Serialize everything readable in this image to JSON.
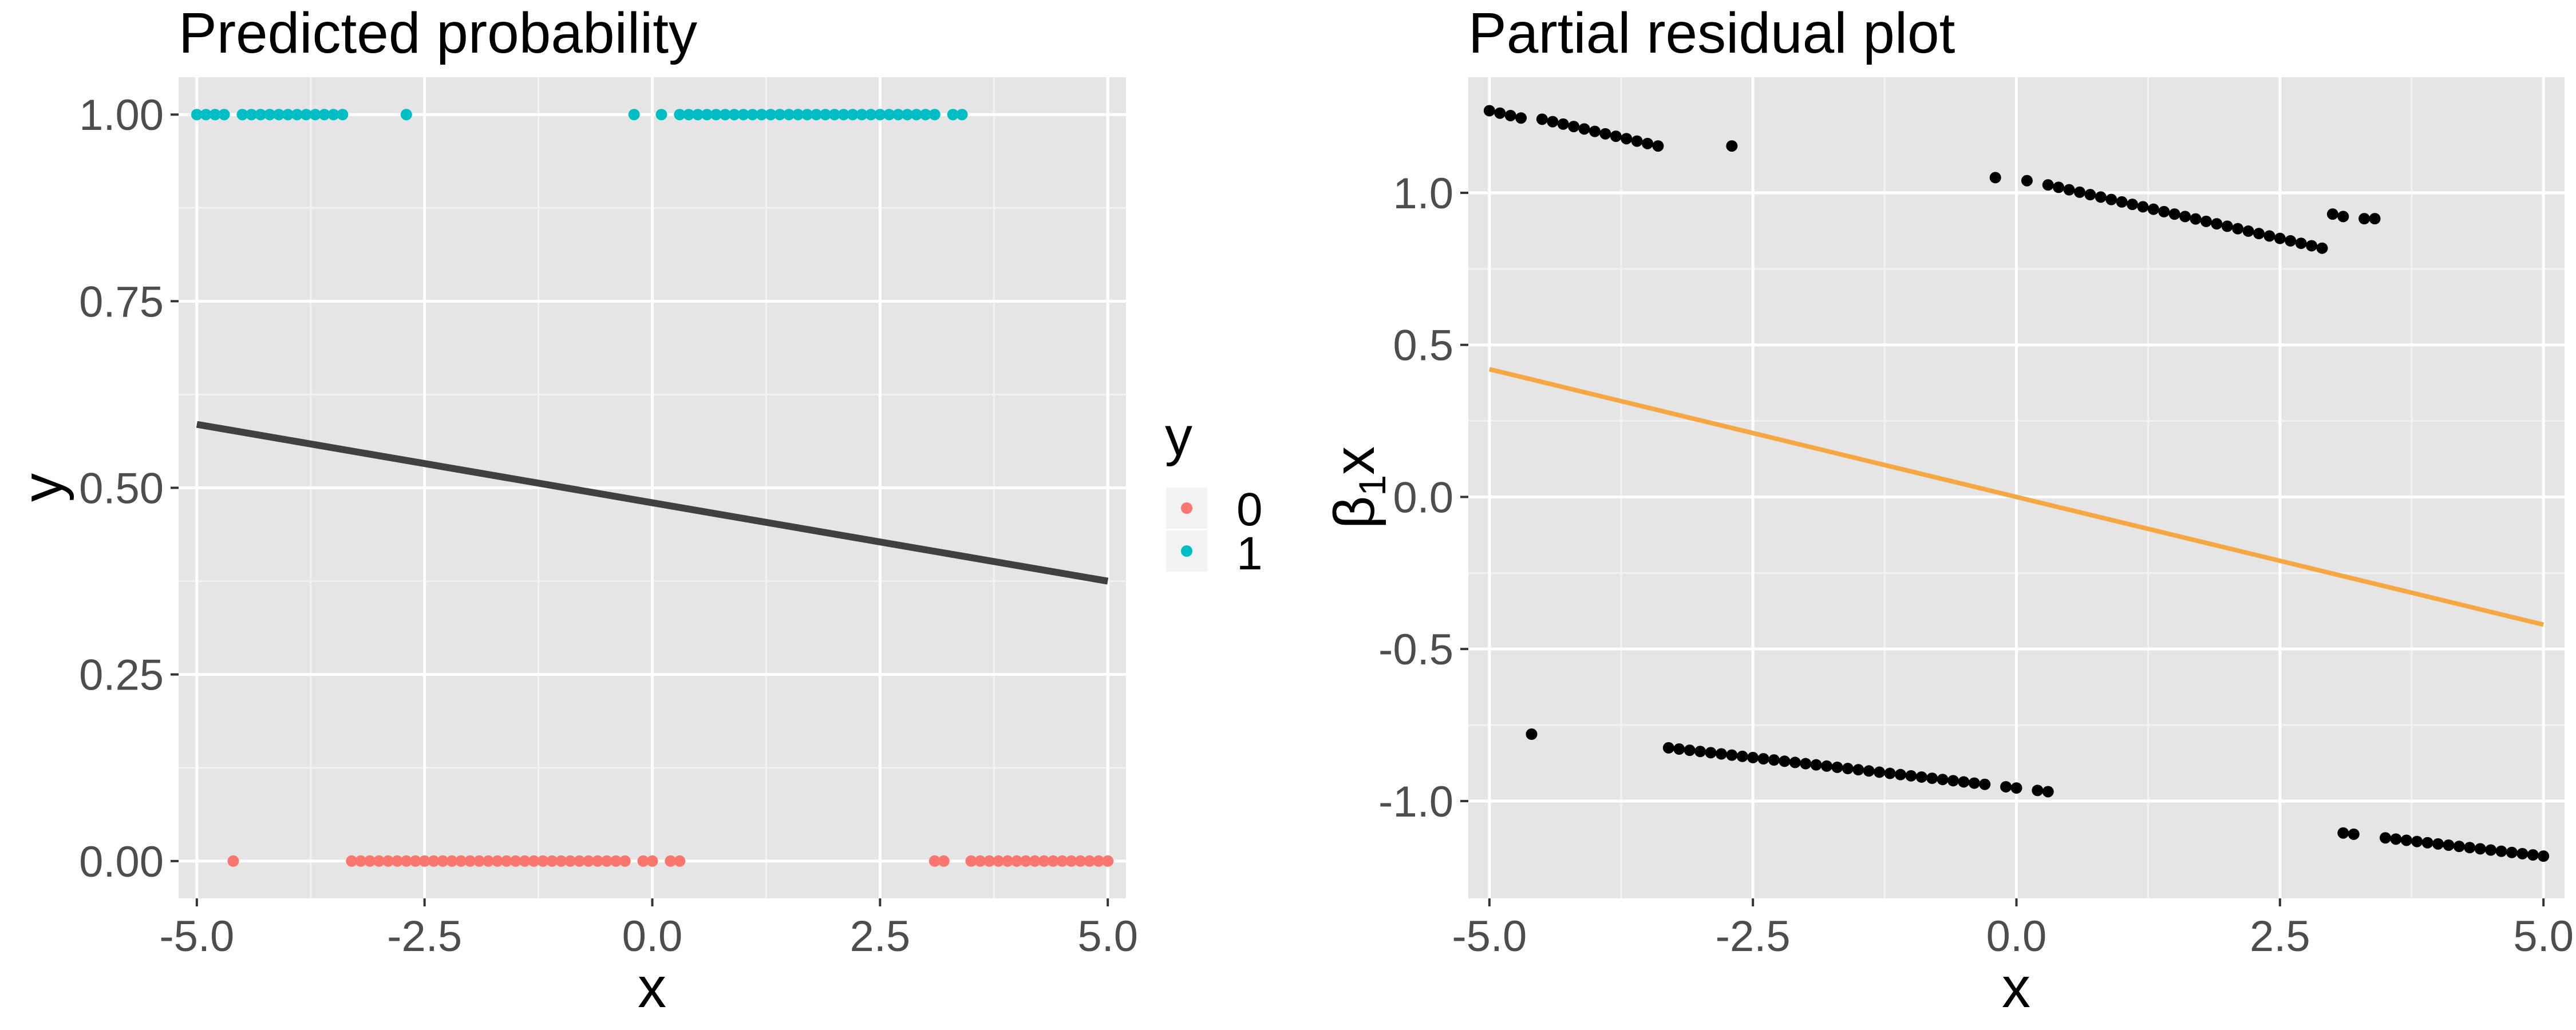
{
  "colors": {
    "panel_background": "#E5E5E5",
    "grid_major": "#FFFFFF",
    "grid_minor": "#F2F2F2",
    "class_0": "#F8766D",
    "class_1": "#00BFC4",
    "fit_line_left": "#404040",
    "fit_line_right": "#F5A742",
    "points_right": "#000000"
  },
  "chart_data": [
    {
      "type": "scatter",
      "title": "Predicted probability",
      "xlabel": "x",
      "ylabel": "y",
      "xlim": [
        -5.2,
        5.2
      ],
      "ylim": [
        -0.05,
        1.05
      ],
      "xticks": [
        -5.0,
        -2.5,
        0.0,
        2.5,
        5.0
      ],
      "xtick_labels": [
        "-5.0",
        "-2.5",
        "0.0",
        "2.5",
        "5.0"
      ],
      "yticks": [
        0.0,
        0.25,
        0.5,
        0.75,
        1.0
      ],
      "ytick_labels": [
        "0.00",
        "0.25",
        "0.50",
        "0.75",
        "1.00"
      ],
      "grid": true,
      "legend": {
        "title": "y",
        "position": "right",
        "entries": [
          {
            "label": "0",
            "color": "#F8766D"
          },
          {
            "label": "1",
            "color": "#00BFC4"
          }
        ]
      },
      "series": [
        {
          "name": "0",
          "color": "#F8766D",
          "x": [
            -4.6,
            -3.3,
            -3.2,
            -3.1,
            -3.0,
            -2.9,
            -2.8,
            -2.7,
            -2.6,
            -2.5,
            -2.4,
            -2.3,
            -2.2,
            -2.1,
            -2.0,
            -1.9,
            -1.8,
            -1.7,
            -1.6,
            -1.5,
            -1.4,
            -1.3,
            -1.2,
            -1.1,
            -1.0,
            -0.9,
            -0.8,
            -0.7,
            -0.6,
            -0.5,
            -0.4,
            -0.3,
            -0.1,
            0.0,
            0.2,
            0.3,
            3.1,
            3.2,
            3.5,
            3.6,
            3.7,
            3.8,
            3.9,
            4.0,
            4.1,
            4.2,
            4.3,
            4.4,
            4.5,
            4.6,
            4.7,
            4.8,
            4.9,
            5.0
          ],
          "y": [
            0,
            0,
            0,
            0,
            0,
            0,
            0,
            0,
            0,
            0,
            0,
            0,
            0,
            0,
            0,
            0,
            0,
            0,
            0,
            0,
            0,
            0,
            0,
            0,
            0,
            0,
            0,
            0,
            0,
            0,
            0,
            0,
            0,
            0,
            0,
            0,
            0,
            0,
            0,
            0,
            0,
            0,
            0,
            0,
            0,
            0,
            0,
            0,
            0,
            0,
            0,
            0,
            0,
            0
          ]
        },
        {
          "name": "1",
          "color": "#00BFC4",
          "x": [
            -5.0,
            -4.9,
            -4.8,
            -4.7,
            -4.5,
            -4.4,
            -4.3,
            -4.2,
            -4.1,
            -4.0,
            -3.9,
            -3.8,
            -3.7,
            -3.6,
            -3.5,
            -3.4,
            -2.7,
            -0.2,
            0.1,
            0.3,
            0.4,
            0.5,
            0.6,
            0.7,
            0.8,
            0.9,
            1.0,
            1.1,
            1.2,
            1.3,
            1.4,
            1.5,
            1.6,
            1.7,
            1.8,
            1.9,
            2.0,
            2.1,
            2.2,
            2.3,
            2.4,
            2.5,
            2.6,
            2.7,
            2.8,
            2.9,
            3.0,
            3.1,
            3.3,
            3.4
          ],
          "y": [
            1,
            1,
            1,
            1,
            1,
            1,
            1,
            1,
            1,
            1,
            1,
            1,
            1,
            1,
            1,
            1,
            1,
            1,
            1,
            1,
            1,
            1,
            1,
            1,
            1,
            1,
            1,
            1,
            1,
            1,
            1,
            1,
            1,
            1,
            1,
            1,
            1,
            1,
            1,
            1,
            1,
            1,
            1,
            1,
            1,
            1,
            1,
            1,
            1,
            1
          ]
        }
      ],
      "fit_line": {
        "x": [
          -5.0,
          5.0
        ],
        "y": [
          0.585,
          0.375
        ],
        "color": "#404040"
      }
    },
    {
      "type": "scatter",
      "title": "Partial residual plot",
      "xlabel": "x",
      "ylabel_parts": {
        "symbol": "β",
        "subscript": "1",
        "suffix": "x"
      },
      "xlim": [
        -5.2,
        5.2
      ],
      "ylim": [
        -1.32,
        1.38
      ],
      "xticks": [
        -5.0,
        -2.5,
        0.0,
        2.5,
        5.0
      ],
      "xtick_labels": [
        "-5.0",
        "-2.5",
        "0.0",
        "2.5",
        "5.0"
      ],
      "yticks": [
        -1.0,
        -0.5,
        0.0,
        0.5,
        1.0
      ],
      "ytick_labels": [
        "-1.0",
        "-0.5",
        "0.0",
        "0.5",
        "1.0"
      ],
      "grid": true,
      "series": [
        {
          "color": "#000000",
          "x": [
            -5.0,
            -4.9,
            -4.8,
            -4.7,
            -4.5,
            -4.4,
            -4.3,
            -4.2,
            -4.1,
            -4.0,
            -3.9,
            -3.8,
            -3.7,
            -3.6,
            -3.5,
            -3.4,
            -2.7,
            -0.2,
            0.1,
            0.3,
            0.4,
            0.5,
            0.6,
            0.7,
            0.8,
            0.9,
            1.0,
            1.1,
            1.2,
            1.3,
            1.4,
            1.5,
            1.6,
            1.7,
            1.8,
            1.9,
            2.0,
            2.1,
            2.2,
            2.3,
            2.4,
            2.5,
            2.6,
            2.7,
            2.8,
            2.9,
            3.0,
            3.1,
            3.3,
            3.4,
            -4.6,
            -3.3,
            -3.2,
            -3.1,
            -3.0,
            -2.9,
            -2.8,
            -2.7,
            -2.6,
            -2.5,
            -2.4,
            -2.3,
            -2.2,
            -2.1,
            -2.0,
            -1.9,
            -1.8,
            -1.7,
            -1.6,
            -1.5,
            -1.4,
            -1.3,
            -1.2,
            -1.1,
            -1.0,
            -0.9,
            -0.8,
            -0.7,
            -0.6,
            -0.5,
            -0.4,
            -0.3,
            -0.1,
            0.0,
            0.2,
            0.3,
            3.1,
            3.2,
            3.5,
            3.6,
            3.7,
            3.8,
            3.9,
            4.0,
            4.1,
            4.2,
            4.3,
            4.4,
            4.5,
            4.6,
            4.7,
            4.8,
            4.9,
            5.0
          ],
          "y": [
            1.27,
            1.262,
            1.254,
            1.246,
            1.242,
            1.234,
            1.226,
            1.218,
            1.21,
            1.202,
            1.194,
            1.186,
            1.178,
            1.17,
            1.162,
            1.154,
            1.154,
            1.05,
            1.04,
            1.026,
            1.018,
            1.01,
            1.002,
            0.994,
            0.986,
            0.978,
            0.97,
            0.962,
            0.954,
            0.946,
            0.938,
            0.93,
            0.922,
            0.914,
            0.906,
            0.898,
            0.89,
            0.882,
            0.874,
            0.866,
            0.858,
            0.85,
            0.842,
            0.834,
            0.826,
            0.818,
            0.93,
            0.922,
            0.915,
            0.915,
            -0.78,
            -0.825,
            -0.829,
            -0.833,
            -0.837,
            -0.841,
            -0.845,
            -0.849,
            -0.853,
            -0.857,
            -0.861,
            -0.865,
            -0.869,
            -0.873,
            -0.877,
            -0.881,
            -0.885,
            -0.889,
            -0.893,
            -0.897,
            -0.901,
            -0.905,
            -0.909,
            -0.913,
            -0.917,
            -0.921,
            -0.925,
            -0.929,
            -0.933,
            -0.937,
            -0.941,
            -0.945,
            -0.953,
            -0.957,
            -0.965,
            -0.969,
            -1.105,
            -1.109,
            -1.121,
            -1.125,
            -1.129,
            -1.133,
            -1.137,
            -1.141,
            -1.145,
            -1.149,
            -1.153,
            -1.157,
            -1.161,
            -1.165,
            -1.169,
            -1.173,
            -1.177,
            -1.181
          ]
        }
      ],
      "fit_line": {
        "x": [
          -5.0,
          5.0
        ],
        "y": [
          0.42,
          -0.42
        ],
        "color": "#F5A742"
      }
    }
  ]
}
